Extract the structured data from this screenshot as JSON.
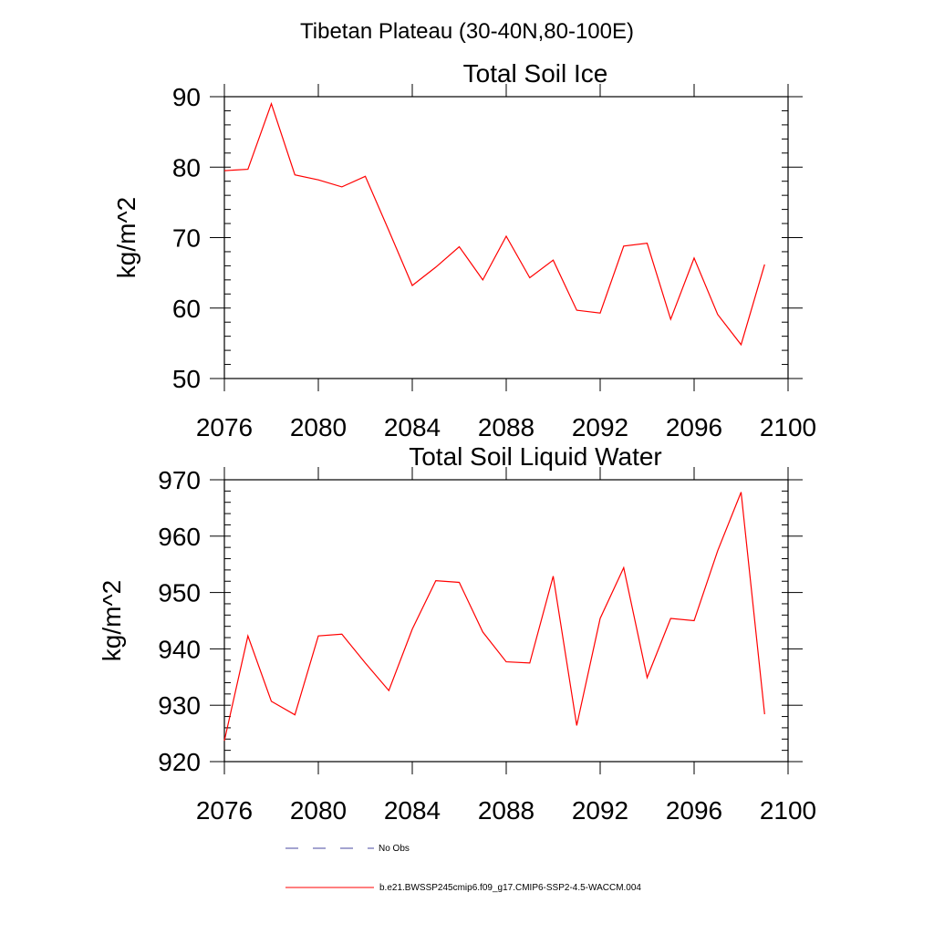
{
  "title": "Tibetan Plateau (30-40N,80-100E)",
  "legend": {
    "entries": [
      {
        "label": "No Obs",
        "style": "dashed",
        "color": "#4a4aa0"
      },
      {
        "label": "b.e21.BWSSP245cmip6.f09_g17.CMIP6-SSP2-4.5-WACCM.004",
        "style": "solid",
        "color": "#ff0000"
      }
    ]
  },
  "chart_data": [
    {
      "type": "line",
      "title": "Total Soil Ice",
      "xlabel": "",
      "ylabel": "kg/m^2",
      "xlim": [
        2076,
        2100
      ],
      "ylim": [
        50,
        90
      ],
      "xticks": [
        2076,
        2080,
        2084,
        2088,
        2092,
        2096,
        2100
      ],
      "yticks": [
        50,
        60,
        70,
        80,
        90
      ],
      "grid": false,
      "series": [
        {
          "name": "b.e21.BWSSP245cmip6.f09_g17.CMIP6-SSP2-4.5-WACCM.004",
          "color": "#ff0000",
          "x": [
            2076,
            2077,
            2078,
            2079,
            2080,
            2081,
            2082,
            2083,
            2084,
            2085,
            2086,
            2087,
            2088,
            2089,
            2090,
            2091,
            2092,
            2093,
            2094,
            2095,
            2096,
            2097,
            2098,
            2099
          ],
          "values": [
            79.5,
            79.7,
            89.0,
            78.9,
            78.2,
            77.2,
            78.7,
            71.0,
            63.2,
            65.8,
            68.7,
            64.0,
            70.2,
            64.3,
            66.8,
            59.7,
            59.3,
            68.8,
            69.2,
            58.4,
            67.1,
            59.1,
            54.8,
            66.2
          ]
        }
      ]
    },
    {
      "type": "line",
      "title": "Total Soil Liquid Water",
      "xlabel": "",
      "ylabel": "kg/m^2",
      "xlim": [
        2076,
        2100
      ],
      "ylim": [
        920,
        970
      ],
      "xticks": [
        2076,
        2080,
        2084,
        2088,
        2092,
        2096,
        2100
      ],
      "yticks": [
        920,
        930,
        940,
        950,
        960,
        970
      ],
      "grid": false,
      "series": [
        {
          "name": "b.e21.BWSSP245cmip6.f09_g17.CMIP6-SSP2-4.5-WACCM.004",
          "color": "#ff0000",
          "x": [
            2076,
            2077,
            2078,
            2079,
            2080,
            2081,
            2082,
            2083,
            2084,
            2085,
            2086,
            2087,
            2088,
            2089,
            2090,
            2091,
            2092,
            2093,
            2094,
            2095,
            2096,
            2097,
            2098,
            2099
          ],
          "values": [
            923.7,
            942.3,
            930.7,
            928.3,
            942.3,
            942.6,
            937.5,
            932.6,
            943.5,
            952.1,
            951.8,
            943.0,
            937.7,
            937.5,
            952.9,
            926.4,
            945.4,
            954.4,
            934.9,
            945.4,
            945.0,
            957.4,
            967.8,
            928.4
          ]
        }
      ]
    }
  ]
}
